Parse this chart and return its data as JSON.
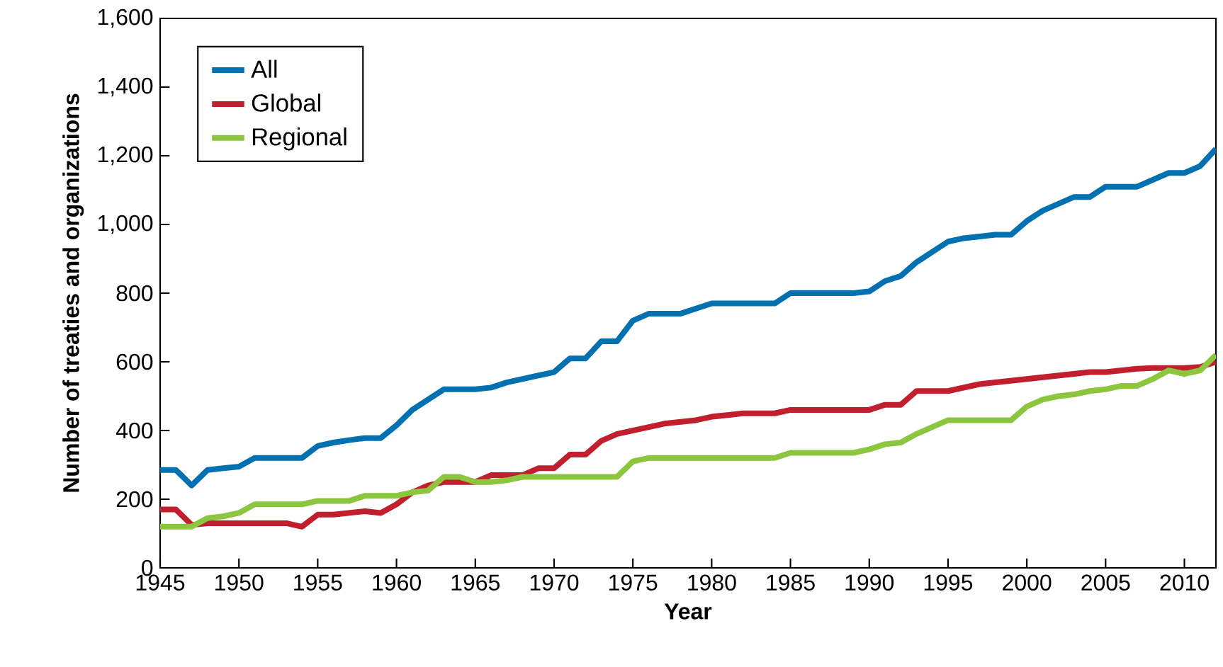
{
  "chart_data": {
    "type": "line",
    "xlabel": "Year",
    "ylabel": "Number of treaties and organizations",
    "x": [
      1945,
      1946,
      1947,
      1948,
      1949,
      1950,
      1951,
      1952,
      1953,
      1954,
      1955,
      1956,
      1957,
      1958,
      1959,
      1960,
      1961,
      1962,
      1963,
      1964,
      1965,
      1966,
      1967,
      1968,
      1969,
      1970,
      1971,
      1972,
      1973,
      1974,
      1975,
      1976,
      1977,
      1978,
      1979,
      1980,
      1981,
      1982,
      1983,
      1984,
      1985,
      1986,
      1987,
      1988,
      1989,
      1990,
      1991,
      1992,
      1993,
      1994,
      1995,
      1996,
      1997,
      1998,
      1999,
      2000,
      2001,
      2002,
      2003,
      2004,
      2005,
      2006,
      2007,
      2008,
      2009,
      2010,
      2011,
      2012
    ],
    "series": [
      {
        "name": "All",
        "color": "#0071b0",
        "values": [
          285,
          285,
          240,
          285,
          290,
          295,
          320,
          320,
          320,
          320,
          355,
          365,
          372,
          378,
          378,
          415,
          460,
          490,
          520,
          520,
          520,
          525,
          540,
          550,
          560,
          570,
          610,
          610,
          660,
          660,
          720,
          740,
          740,
          740,
          755,
          770,
          770,
          770,
          770,
          770,
          800,
          800,
          800,
          800,
          800,
          805,
          835,
          850,
          890,
          920,
          950,
          960,
          965,
          970,
          970,
          1010,
          1040,
          1060,
          1080,
          1080,
          1110,
          1110,
          1110,
          1130,
          1150,
          1150,
          1170,
          1220
        ]
      },
      {
        "name": "Global",
        "color": "#c11f2e",
        "values": [
          170,
          170,
          125,
          130,
          130,
          130,
          130,
          130,
          130,
          120,
          155,
          155,
          160,
          165,
          160,
          185,
          220,
          240,
          250,
          250,
          250,
          270,
          270,
          270,
          290,
          290,
          330,
          330,
          370,
          390,
          400,
          410,
          420,
          425,
          430,
          440,
          445,
          450,
          450,
          450,
          460,
          460,
          460,
          460,
          460,
          460,
          475,
          475,
          515,
          515,
          515,
          525,
          535,
          540,
          545,
          550,
          555,
          560,
          565,
          570,
          570,
          575,
          580,
          582,
          582,
          582,
          585,
          600
        ]
      },
      {
        "name": "Regional",
        "color": "#8cc63f",
        "values": [
          120,
          120,
          120,
          145,
          150,
          160,
          185,
          185,
          185,
          185,
          195,
          195,
          195,
          210,
          210,
          210,
          220,
          225,
          265,
          265,
          250,
          250,
          255,
          265,
          265,
          265,
          265,
          265,
          265,
          265,
          310,
          320,
          320,
          320,
          320,
          320,
          320,
          320,
          320,
          320,
          335,
          335,
          335,
          335,
          335,
          345,
          360,
          365,
          390,
          410,
          430,
          430,
          430,
          430,
          430,
          470,
          490,
          500,
          505,
          515,
          520,
          530,
          530,
          550,
          575,
          565,
          575,
          620
        ]
      }
    ],
    "xlim": [
      1945,
      2012
    ],
    "xticks": [
      1945,
      1950,
      1955,
      1960,
      1965,
      1970,
      1975,
      1980,
      1985,
      1990,
      1995,
      2000,
      2005,
      2010
    ],
    "ylim": [
      0,
      1600
    ],
    "yticks": [
      0,
      200,
      400,
      600,
      800,
      {
        "value": 1000,
        "label": "1,000"
      },
      {
        "value": 1200,
        "label": "1,200"
      },
      {
        "value": 1400,
        "label": "1,400"
      },
      {
        "value": 1600,
        "label": "1,600"
      }
    ],
    "legend": "top left",
    "grid": false,
    "marker": "none",
    "line_style": "solid"
  }
}
